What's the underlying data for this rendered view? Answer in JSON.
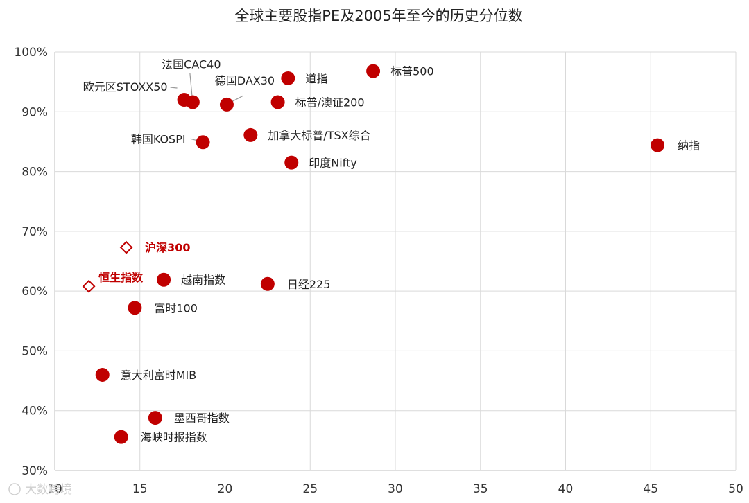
{
  "chart_data": {
    "type": "scatter",
    "title": "全球主要股指PE及2005年至今的历史分位数",
    "xlim": [
      10,
      50
    ],
    "ylim": [
      30,
      100
    ],
    "x_ticks": [
      "10",
      "15",
      "20",
      "25",
      "30",
      "35",
      "40",
      "45",
      "50"
    ],
    "y_ticks": [
      "30%",
      "40%",
      "50%",
      "60%",
      "70%",
      "80%",
      "90%",
      "100%"
    ],
    "grid": true,
    "series_colors": {
      "point": "#c00000",
      "highlight": "#c00000"
    },
    "points": [
      {
        "label": "标普500",
        "x": 28.7,
        "y": 96.8,
        "marker": "circle"
      },
      {
        "label": "道指",
        "x": 23.7,
        "y": 95.6,
        "marker": "circle"
      },
      {
        "label": "法国CAC40",
        "x": 18.1,
        "y": 91.6,
        "marker": "circle"
      },
      {
        "label": "欧元区STOXX50",
        "x": 17.6,
        "y": 92.0,
        "marker": "circle"
      },
      {
        "label": "德国DAX30",
        "x": 20.1,
        "y": 91.2,
        "marker": "circle"
      },
      {
        "label": "标普/澳证200",
        "x": 23.1,
        "y": 91.6,
        "marker": "circle"
      },
      {
        "label": "加拿大标普/TSX综合",
        "x": 21.5,
        "y": 86.1,
        "marker": "circle"
      },
      {
        "label": "韩国KOSPI",
        "x": 18.7,
        "y": 84.9,
        "marker": "circle"
      },
      {
        "label": "纳指",
        "x": 45.4,
        "y": 84.4,
        "marker": "circle"
      },
      {
        "label": "印度Nifty",
        "x": 23.9,
        "y": 81.5,
        "marker": "circle"
      },
      {
        "label": "沪深300",
        "x": 14.2,
        "y": 67.3,
        "marker": "diamond"
      },
      {
        "label": "恒生指数",
        "x": 12.0,
        "y": 60.8,
        "marker": "diamond"
      },
      {
        "label": "越南指数",
        "x": 16.4,
        "y": 61.9,
        "marker": "circle"
      },
      {
        "label": "日经225",
        "x": 22.5,
        "y": 61.2,
        "marker": "circle"
      },
      {
        "label": "富时100",
        "x": 14.7,
        "y": 57.2,
        "marker": "circle"
      },
      {
        "label": "意大利富时MIB",
        "x": 12.8,
        "y": 46.0,
        "marker": "circle"
      },
      {
        "label": "墨西哥指数",
        "x": 15.9,
        "y": 38.8,
        "marker": "circle"
      },
      {
        "label": "海峡时报指数",
        "x": 13.9,
        "y": 35.6,
        "marker": "circle"
      }
    ]
  },
  "watermark": "大数跨境"
}
